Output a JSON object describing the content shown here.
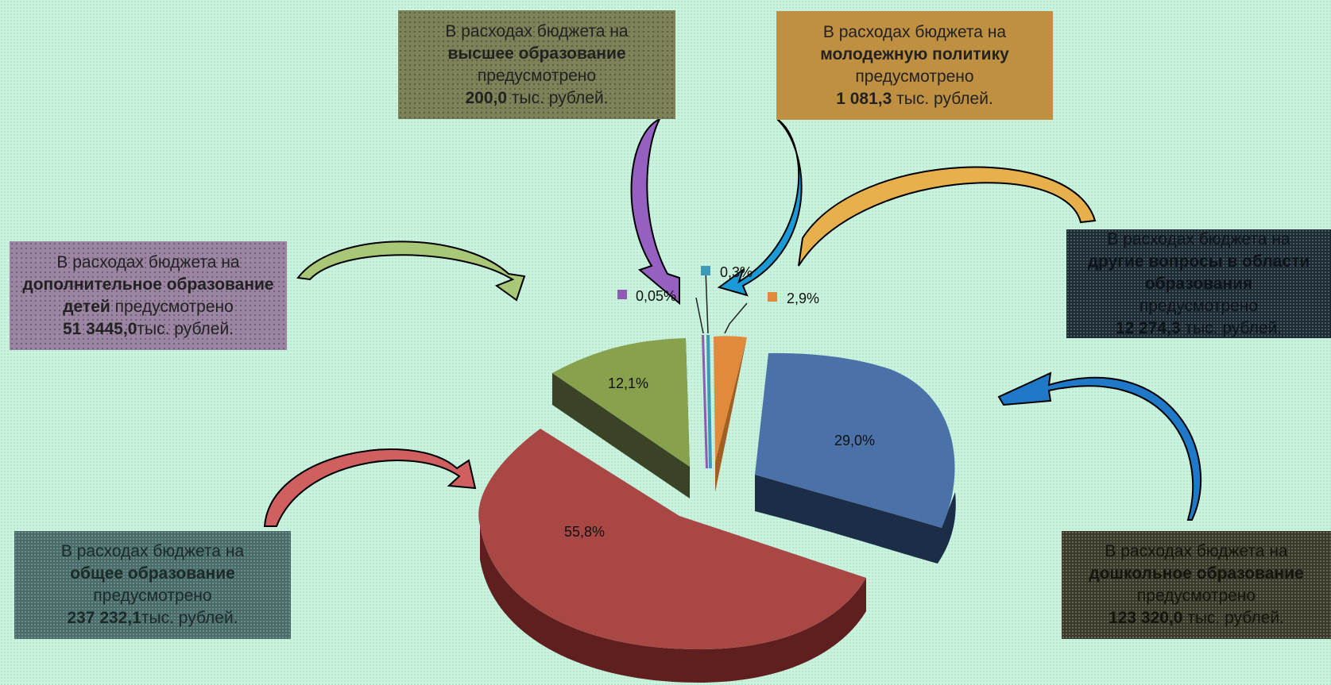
{
  "callouts": {
    "higher": {
      "line1": "В расходах бюджета на",
      "bold": "высшее образование",
      "line3": "предусмотрено",
      "amount": "200,0",
      "unit": " тыс. рублей."
    },
    "youth": {
      "line1": "В расходах бюджета на",
      "bold": "молодежную политику",
      "line3": "предусмотрено",
      "amount": "1 081,3",
      "unit": " тыс. рублей."
    },
    "extra": {
      "line1": "В расходах бюджета на",
      "bold": "дополнительное образование детей",
      "line3": " предусмотрено",
      "amount": "51 3445,0",
      "unit": "тыс. рублей."
    },
    "general": {
      "line1": "В расходах бюджета на",
      "bold": "общее образование",
      "line3": "предусмотрено",
      "amount": "237 232,1",
      "unit": "тыс. рублей."
    },
    "other": {
      "line1": "В расходах бюджета на",
      "bold": "другие вопросы в области образования",
      "line3": "предусмотрено",
      "amount": "12 274,3",
      "unit": " тыс. рублей."
    },
    "preschool": {
      "line1": "В расходах бюджета на",
      "bold": "дошкольное образование",
      "line3": "предусмотрено",
      "amount": "123 320,0",
      "unit": " тыс. рублей."
    }
  },
  "chart_data": {
    "type": "pie",
    "style": "3d-exploded",
    "series": [
      {
        "label": "29,0%",
        "value": 29.0,
        "color": "#4a72a8"
      },
      {
        "label": "55,8%",
        "value": 55.8,
        "color": "#a84744"
      },
      {
        "label": "12,1%",
        "value": 12.1,
        "color": "#88a14c"
      },
      {
        "label": "0,05%",
        "value": 0.05,
        "color": "#8d5bb3"
      },
      {
        "label": "0,3%",
        "value": 0.3,
        "color": "#3d9ab8"
      },
      {
        "label": "2,9%",
        "value": 2.9,
        "color": "#e08a3c"
      }
    ]
  }
}
